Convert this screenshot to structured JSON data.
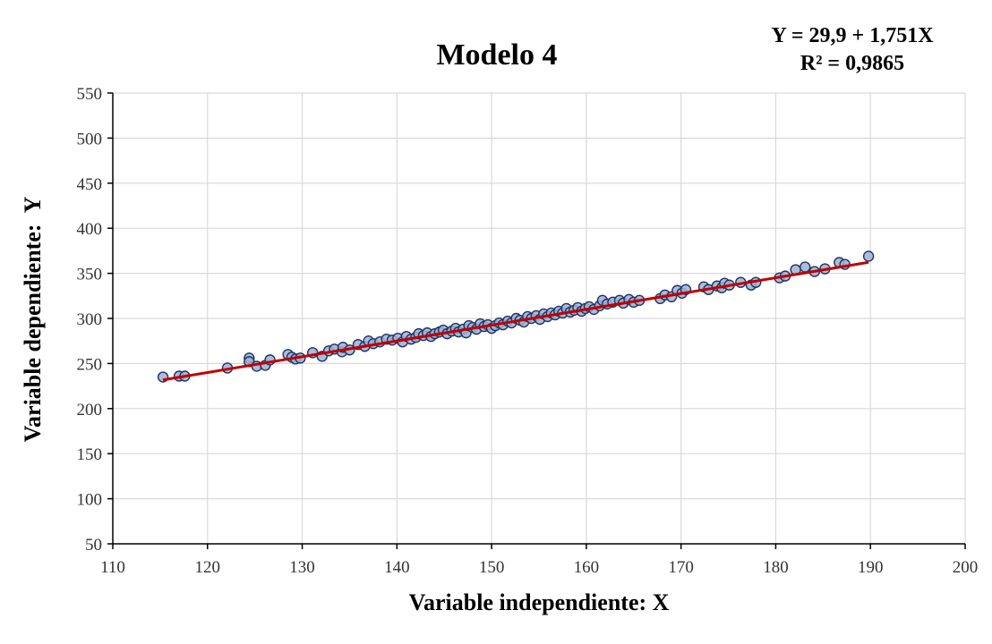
{
  "chart_data": {
    "type": "scatter",
    "title": "Modelo 4",
    "equation": "Y = 29,9 + 1,751X",
    "r_squared": "R² = 0,9865",
    "xlabel": "Variable independiente: X",
    "ylabel": "Variable dependiente:  Y",
    "xlim": [
      110,
      200
    ],
    "ylim": [
      50,
      550
    ],
    "xticks": [
      110,
      120,
      130,
      140,
      150,
      160,
      170,
      180,
      190,
      200
    ],
    "yticks": [
      50,
      100,
      150,
      200,
      250,
      300,
      350,
      400,
      450,
      500,
      550
    ],
    "grid": true,
    "legend": "none",
    "colors": {
      "points_fill": "#9fb0d2",
      "points_edge": "#1f3464",
      "trendline": "#c00000"
    },
    "trendline": {
      "intercept": 29.9,
      "slope": 1.751,
      "x_range": [
        115.3,
        189.8
      ]
    },
    "points": [
      [
        115.3,
        235
      ],
      [
        117.0,
        236
      ],
      [
        117.6,
        236
      ],
      [
        122.1,
        245
      ],
      [
        124.4,
        256
      ],
      [
        124.4,
        252
      ],
      [
        125.2,
        247
      ],
      [
        126.1,
        248
      ],
      [
        126.6,
        254
      ],
      [
        128.5,
        260
      ],
      [
        128.9,
        257
      ],
      [
        129.3,
        255
      ],
      [
        129.8,
        256
      ],
      [
        131.1,
        262
      ],
      [
        132.1,
        258
      ],
      [
        132.8,
        264
      ],
      [
        133.4,
        266
      ],
      [
        134.2,
        263
      ],
      [
        134.3,
        268
      ],
      [
        135.0,
        265
      ],
      [
        135.9,
        271
      ],
      [
        136.6,
        269
      ],
      [
        137.0,
        275
      ],
      [
        137.5,
        272
      ],
      [
        138.2,
        274
      ],
      [
        138.9,
        277
      ],
      [
        139.5,
        276
      ],
      [
        140.1,
        278
      ],
      [
        140.6,
        274
      ],
      [
        141.0,
        280
      ],
      [
        141.5,
        277
      ],
      [
        142.0,
        279
      ],
      [
        142.3,
        283
      ],
      [
        142.8,
        281
      ],
      [
        143.2,
        284
      ],
      [
        143.6,
        280
      ],
      [
        144.0,
        283
      ],
      [
        144.5,
        285
      ],
      [
        144.9,
        287
      ],
      [
        145.3,
        283
      ],
      [
        145.8,
        286
      ],
      [
        146.2,
        289
      ],
      [
        146.5,
        285
      ],
      [
        147.0,
        288
      ],
      [
        147.3,
        284
      ],
      [
        147.6,
        292
      ],
      [
        148.0,
        290
      ],
      [
        148.4,
        288
      ],
      [
        148.8,
        294
      ],
      [
        149.2,
        291
      ],
      [
        149.6,
        293
      ],
      [
        150.0,
        289
      ],
      [
        150.4,
        292
      ],
      [
        150.8,
        295
      ],
      [
        151.2,
        293
      ],
      [
        151.7,
        297
      ],
      [
        152.1,
        295
      ],
      [
        152.6,
        300
      ],
      [
        153.0,
        298
      ],
      [
        153.4,
        296
      ],
      [
        153.8,
        302
      ],
      [
        154.2,
        300
      ],
      [
        154.7,
        303
      ],
      [
        155.1,
        299
      ],
      [
        155.5,
        305
      ],
      [
        155.9,
        302
      ],
      [
        156.3,
        306
      ],
      [
        156.7,
        304
      ],
      [
        157.1,
        308
      ],
      [
        157.5,
        306
      ],
      [
        157.9,
        311
      ],
      [
        158.3,
        307
      ],
      [
        158.7,
        309
      ],
      [
        159.1,
        312
      ],
      [
        159.5,
        308
      ],
      [
        159.9,
        311
      ],
      [
        160.3,
        313
      ],
      [
        160.8,
        310
      ],
      [
        161.4,
        314
      ],
      [
        161.7,
        320
      ],
      [
        162.2,
        316
      ],
      [
        162.8,
        318
      ],
      [
        163.5,
        320
      ],
      [
        163.9,
        317
      ],
      [
        164.5,
        321
      ],
      [
        165.0,
        318
      ],
      [
        165.6,
        320
      ],
      [
        167.8,
        322
      ],
      [
        168.3,
        326
      ],
      [
        169.0,
        324
      ],
      [
        169.6,
        331
      ],
      [
        170.1,
        328
      ],
      [
        170.5,
        332
      ],
      [
        172.4,
        335
      ],
      [
        172.9,
        332
      ],
      [
        173.8,
        336
      ],
      [
        174.3,
        334
      ],
      [
        174.6,
        339
      ],
      [
        175.1,
        337
      ],
      [
        176.3,
        340
      ],
      [
        177.4,
        337
      ],
      [
        177.9,
        340
      ],
      [
        180.4,
        345
      ],
      [
        181.0,
        347
      ],
      [
        182.1,
        354
      ],
      [
        183.1,
        357
      ],
      [
        184.1,
        352
      ],
      [
        185.2,
        355
      ],
      [
        186.7,
        362
      ],
      [
        187.3,
        360
      ],
      [
        189.8,
        369
      ]
    ]
  }
}
